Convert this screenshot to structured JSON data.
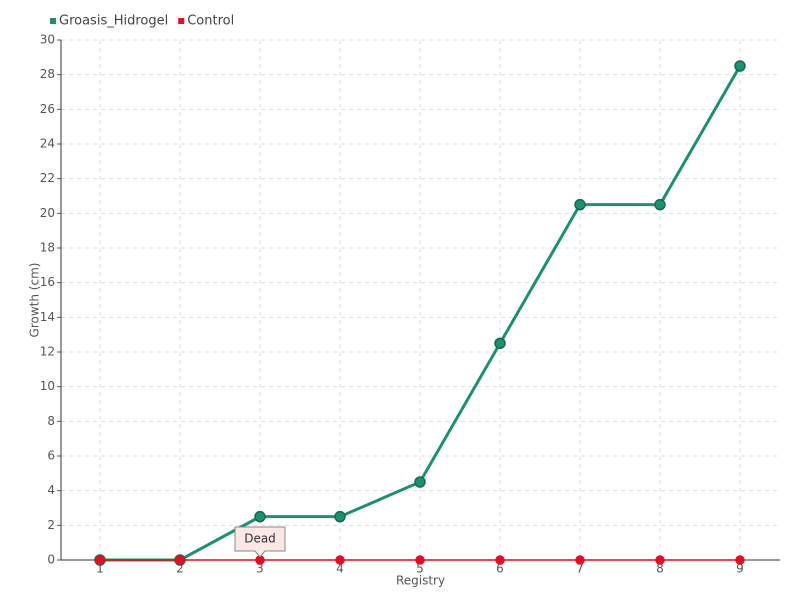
{
  "chart_data": {
    "type": "line",
    "x_label": "Registry",
    "y_label": "Growth (cm)",
    "categories": [
      "1",
      "2",
      "3",
      "4",
      "5",
      "6",
      "7",
      "8",
      "9"
    ],
    "series": [
      {
        "name": "Groasis_Hidrogel",
        "color": "#1f8f6f",
        "values": [
          0,
          0,
          2.5,
          2.5,
          4.5,
          12.5,
          20.5,
          20.5,
          28.5
        ]
      },
      {
        "name": "Control",
        "color": "#e0101e",
        "values": [
          0,
          0,
          0,
          0,
          0,
          0,
          0,
          0,
          0
        ]
      }
    ],
    "annotations": [
      {
        "text": "Dead",
        "x": "3",
        "y": 0
      }
    ],
    "ylim": [
      0,
      30
    ],
    "yticks": [
      0,
      2,
      4,
      6,
      8,
      10,
      12,
      14,
      16,
      18,
      20,
      22,
      24,
      26,
      28,
      30
    ],
    "grid": true,
    "legend": "top-left"
  }
}
